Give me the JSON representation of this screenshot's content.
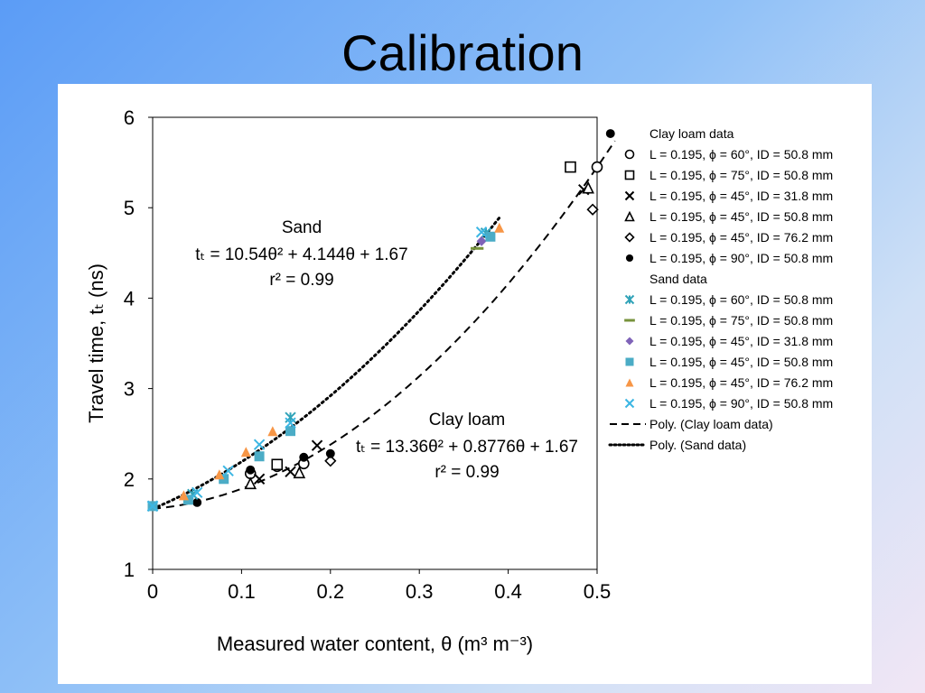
{
  "slide": {
    "title": "Calibration"
  },
  "chart_data": {
    "type": "scatter",
    "xlabel": "Measured water content, θ (m³ m⁻³)",
    "ylabel": "Travel time, tₜ (ns)",
    "xlim": [
      0,
      0.5
    ],
    "ylim": [
      1,
      6
    ],
    "x_ticks": [
      "0",
      "0.1",
      "0.2",
      "0.3",
      "0.4",
      "0.5"
    ],
    "y_ticks": [
      "1",
      "2",
      "3",
      "4",
      "5",
      "6"
    ],
    "grid": false,
    "legend_position": "right",
    "annotations": {
      "sand": {
        "title": "Sand",
        "equation": "tₜ = 10.54θ² + 4.144θ + 1.67",
        "r2": "r² = 0.99"
      },
      "clay": {
        "title": "Clay loam",
        "equation": "tₜ = 13.36θ² + 0.8776θ + 1.67",
        "r2": "r² = 0.99"
      }
    },
    "legend_groups": {
      "clay": "Clay loam data",
      "sand": "Sand data"
    },
    "series": [
      {
        "name": "L = 0.195, ϕ = 60°, ID = 50.8 mm",
        "group": "clay",
        "marker": "circle-open",
        "color": "#000000",
        "points": [
          [
            0.11,
            2.06
          ],
          [
            0.14,
            2.14
          ],
          [
            0.17,
            2.17
          ],
          [
            0.5,
            5.45
          ]
        ]
      },
      {
        "name": "L = 0.195, ϕ = 75°, ID = 50.8 mm",
        "group": "clay",
        "marker": "square-open",
        "color": "#000000",
        "points": [
          [
            0.14,
            2.16
          ],
          [
            0.47,
            5.45
          ]
        ]
      },
      {
        "name": "L = 0.195, ϕ = 45°, ID = 31.8 mm",
        "group": "clay",
        "marker": "x",
        "color": "#000000",
        "points": [
          [
            0.12,
            2.0
          ],
          [
            0.155,
            2.08
          ],
          [
            0.185,
            2.37
          ],
          [
            0.485,
            5.2
          ]
        ]
      },
      {
        "name": "L = 0.195, ϕ = 45°, ID = 50.8 mm",
        "group": "clay",
        "marker": "triangle-open",
        "color": "#000000",
        "points": [
          [
            0.11,
            1.95
          ],
          [
            0.165,
            2.07
          ],
          [
            0.49,
            5.22
          ]
        ]
      },
      {
        "name": "L = 0.195, ϕ = 45°, ID = 76.2 mm",
        "group": "clay",
        "marker": "diamond-open",
        "color": "#000000",
        "points": [
          [
            0.2,
            2.2
          ],
          [
            0.495,
            4.98
          ]
        ]
      },
      {
        "name": "L = 0.195, ϕ = 90°, ID = 50.8 mm",
        "group": "clay",
        "marker": "circle-filled",
        "color": "#000000",
        "points": [
          [
            0.05,
            1.74
          ],
          [
            0.11,
            2.1
          ],
          [
            0.17,
            2.24
          ],
          [
            0.2,
            2.28
          ],
          [
            0.515,
            5.82
          ]
        ]
      },
      {
        "name": "L = 0.195, ϕ = 60°, ID = 50.8 mm",
        "group": "sand",
        "marker": "asterisk",
        "color": "#31a3b8",
        "points": [
          [
            0,
            1.7
          ],
          [
            0.045,
            1.83
          ],
          [
            0.155,
            2.68
          ],
          [
            0.375,
            4.72
          ]
        ]
      },
      {
        "name": "L = 0.195, ϕ = 75°, ID = 50.8 mm",
        "group": "sand",
        "marker": "dash",
        "color": "#77933c",
        "points": [
          [
            0.365,
            4.55
          ]
        ]
      },
      {
        "name": "L = 0.195, ϕ = 45°, ID = 31.8 mm",
        "group": "sand",
        "marker": "diamond-filled",
        "color": "#7f63b8",
        "points": [
          [
            0.37,
            4.63
          ]
        ]
      },
      {
        "name": "L = 0.195, ϕ = 45°, ID = 50.8 mm",
        "group": "sand",
        "marker": "square-filled",
        "color": "#4bacc6",
        "points": [
          [
            0,
            1.7
          ],
          [
            0.04,
            1.77
          ],
          [
            0.08,
            2.0
          ],
          [
            0.12,
            2.25
          ],
          [
            0.155,
            2.53
          ],
          [
            0.38,
            4.68
          ]
        ]
      },
      {
        "name": "L = 0.195, ϕ = 45°, ID = 76.2 mm",
        "group": "sand",
        "marker": "triangle-filled",
        "color": "#f79646",
        "points": [
          [
            0.035,
            1.82
          ],
          [
            0.075,
            2.05
          ],
          [
            0.105,
            2.3
          ],
          [
            0.135,
            2.53
          ],
          [
            0.39,
            4.78
          ]
        ]
      },
      {
        "name": "L = 0.195, ϕ = 90°, ID = 50.8 mm",
        "group": "sand",
        "marker": "x",
        "color": "#3cb6e3",
        "points": [
          [
            0,
            1.7
          ],
          [
            0.05,
            1.85
          ],
          [
            0.085,
            2.09
          ],
          [
            0.12,
            2.38
          ],
          [
            0.155,
            2.62
          ],
          [
            0.37,
            4.73
          ]
        ]
      }
    ],
    "fits": [
      {
        "name": "Poly. (Clay loam data)",
        "style": "dashed",
        "coefficients": [
          13.36,
          0.8776,
          1.67
        ],
        "x_range": [
          0,
          0.52
        ]
      },
      {
        "name": "Poly. (Sand data)",
        "style": "dotted",
        "coefficients": [
          10.54,
          4.144,
          1.67
        ],
        "x_range": [
          0,
          0.39
        ]
      }
    ]
  }
}
